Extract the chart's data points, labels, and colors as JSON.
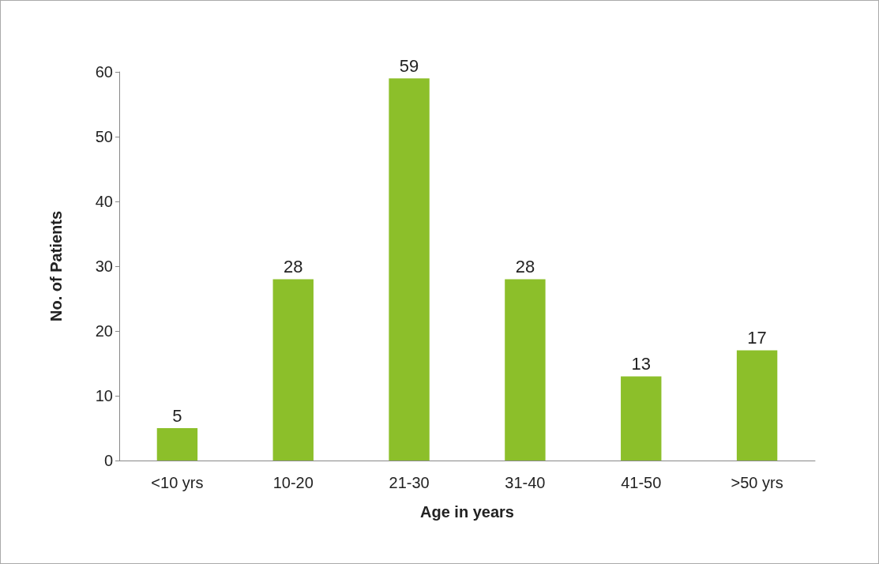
{
  "chart_data": {
    "type": "bar",
    "xlabel": "Age in years",
    "ylabel": "No. of Patients",
    "categories": [
      "<10 yrs",
      "10-20",
      "21-30",
      "31-40",
      "41-50",
      ">50 yrs"
    ],
    "values": [
      5,
      28,
      59,
      28,
      13,
      17
    ],
    "color": "#8cbf2a",
    "ylim": [
      0,
      60
    ],
    "yticks": [
      0,
      10,
      20,
      30,
      40,
      50,
      60
    ],
    "data_labels": true,
    "grid": false
  }
}
